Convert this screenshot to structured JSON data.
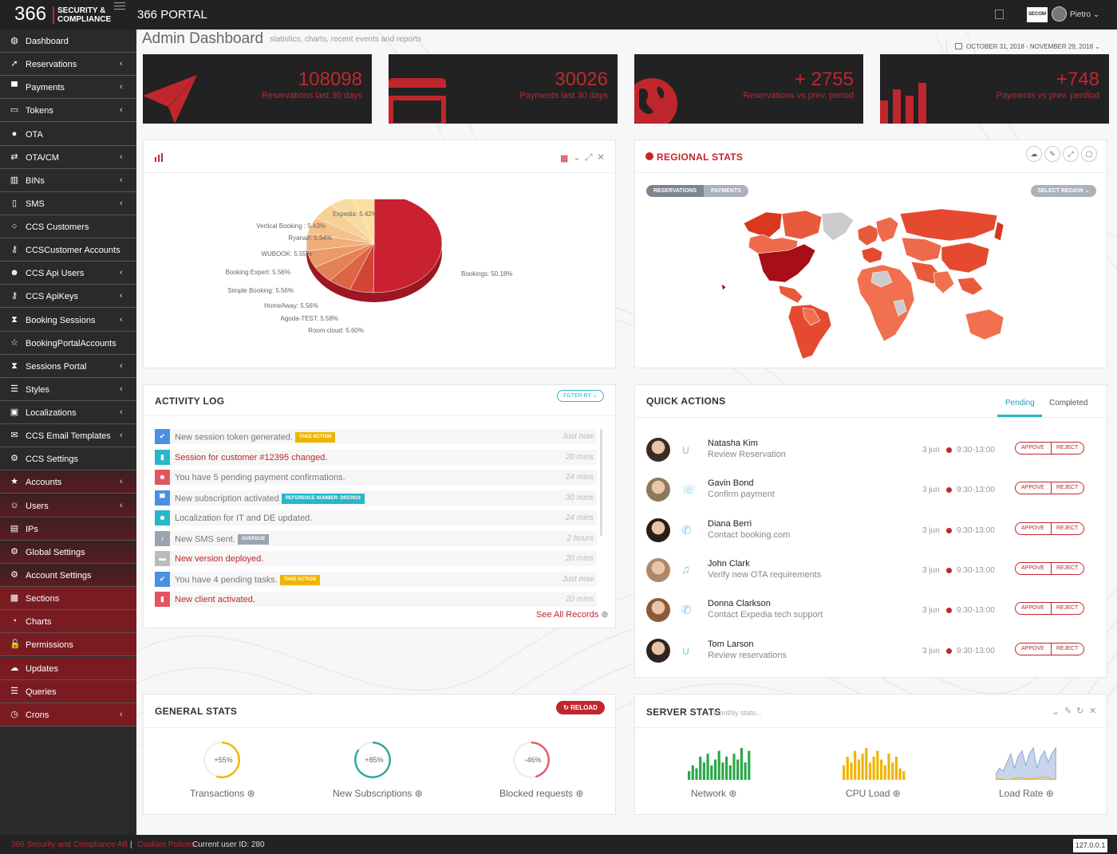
{
  "brand": {
    "number": "366",
    "line1": "SECURITY &",
    "line2": "COMPLIANCE",
    "portal_title": "366 PORTAL",
    "badge": "SECOM"
  },
  "user": {
    "name": "Pietro"
  },
  "sidebar": {
    "items": [
      {
        "label": "Dashboard",
        "icon": "dashboard-icon",
        "glyph": "◍",
        "has_chevron": false
      },
      {
        "label": "Reservations",
        "icon": "paper-plane-icon",
        "glyph": "➚",
        "has_chevron": true
      },
      {
        "label": "Payments",
        "icon": "cart-icon",
        "glyph": "▀",
        "has_chevron": true
      },
      {
        "label": "Tokens",
        "icon": "credit-card-icon",
        "glyph": "▭",
        "has_chevron": true
      },
      {
        "label": "OTA",
        "icon": "globe-icon",
        "glyph": "●",
        "has_chevron": false
      },
      {
        "label": "OTA/CM",
        "icon": "exchange-icon",
        "glyph": "⇄",
        "has_chevron": true
      },
      {
        "label": "BINs",
        "icon": "bank-icon",
        "glyph": "▥",
        "has_chevron": true
      },
      {
        "label": "SMS",
        "icon": "mobile-icon",
        "glyph": "▯",
        "has_chevron": true
      },
      {
        "label": "CCS Customers",
        "icon": "circle-icon",
        "glyph": "○",
        "has_chevron": false
      },
      {
        "label": "CCSCustomer Accounts",
        "icon": "key-icon",
        "glyph": "⚷",
        "has_chevron": false
      },
      {
        "label": "CCS Api Users",
        "icon": "users-icon",
        "glyph": "☻",
        "has_chevron": true
      },
      {
        "label": "CCS ApiKeys",
        "icon": "keys-icon",
        "glyph": "⚷",
        "has_chevron": true
      },
      {
        "label": "Booking Sessions",
        "icon": "hourglass-icon",
        "glyph": "⧗",
        "has_chevron": true
      },
      {
        "label": "BookingPortalAccounts",
        "icon": "star-outline-icon",
        "glyph": "☆",
        "has_chevron": false
      },
      {
        "label": "Sessions Portal",
        "icon": "hourglass-icon",
        "glyph": "⧗",
        "has_chevron": true
      },
      {
        "label": "Styles",
        "icon": "tasks-icon",
        "glyph": "☰",
        "has_chevron": true
      },
      {
        "label": "Localizations",
        "icon": "language-icon",
        "glyph": "▣",
        "has_chevron": true
      },
      {
        "label": "CCS Email Templates",
        "icon": "envelope-icon",
        "glyph": "✉",
        "has_chevron": true
      },
      {
        "label": "CCS Settings",
        "icon": "cogs-icon",
        "glyph": "⚙",
        "has_chevron": false
      },
      {
        "label": "Accounts",
        "icon": "star-icon",
        "glyph": "★",
        "has_chevron": true
      },
      {
        "label": "Users",
        "icon": "user-icon",
        "glyph": "☺",
        "has_chevron": true
      },
      {
        "label": "IPs",
        "icon": "ethernet-icon",
        "glyph": "▤",
        "has_chevron": false
      },
      {
        "label": "Global Settings",
        "icon": "cog-icon",
        "glyph": "⚙",
        "has_chevron": false
      },
      {
        "label": "Account Settings",
        "icon": "cogs-icon",
        "glyph": "⚙",
        "has_chevron": false
      },
      {
        "label": "Sections",
        "icon": "cubes-icon",
        "glyph": "▩",
        "has_chevron": false
      },
      {
        "label": "Charts",
        "icon": "pie-chart-icon",
        "glyph": "◔",
        "has_chevron": false
      },
      {
        "label": "Permissions",
        "icon": "unlock-icon",
        "glyph": "🔓",
        "has_chevron": false
      },
      {
        "label": "Updates",
        "icon": "cloud-upload-icon",
        "glyph": "☁",
        "has_chevron": false
      },
      {
        "label": "Queries",
        "icon": "database-icon",
        "glyph": "☰",
        "has_chevron": false
      },
      {
        "label": "Crons",
        "icon": "clock-icon",
        "glyph": "◷",
        "has_chevron": true
      }
    ]
  },
  "header": {
    "title": "Admin Dashboard",
    "subtitle": "statistics, charts, recent events and reports",
    "date_range": "OCTOBER 31, 2018 - NOVEMBER 29, 2018"
  },
  "stats": [
    {
      "value": "108098",
      "label": "Reservations last 30 days",
      "icon": "paper-plane-icon"
    },
    {
      "value": "30026",
      "label": "Payments last 30 days",
      "icon": "credit-card-icon"
    },
    {
      "value": "+ 2755",
      "label": "Reservations vs prev. period",
      "icon": "globe-icon"
    },
    {
      "value": "+748",
      "label": "Payments vs prev. perdiod",
      "icon": "bar-chart-icon"
    }
  ],
  "chart_data": {
    "type": "pie",
    "title": "",
    "categories": [
      "Bookings",
      "Room cloud",
      "Agoda-TEST",
      "HomeAway",
      "Simple Booking",
      "Booking Expert",
      "WUBOOK",
      "Ryanair",
      "Vertical Booking ",
      "Expedia"
    ],
    "values": [
      50.18,
      5.6,
      5.58,
      5.56,
      5.56,
      5.56,
      5.55,
      5.54,
      5.43,
      5.42
    ],
    "labels": [
      "Bookings: 50.18%",
      "Room cloud: 5.60%",
      "Agoda-TEST: 5.58%",
      "HomeAway: 5.56%",
      "Simple Booking: 5.56%",
      "Booking Expert: 5.56%",
      "WUBOOK: 5.55%",
      "Ryanair: 5.54%",
      "Vertical Booking : 5.43%",
      "Expedia: 5.42%"
    ],
    "colors": [
      "#c9212f",
      "#d24436",
      "#dd6546",
      "#e48155",
      "#eb9b69",
      "#f0ae7a",
      "#f4c18b",
      "#f7d096",
      "#f9dba2",
      "#fbe0a0"
    ]
  },
  "regional": {
    "title": "REGIONAL STATS",
    "tab1": "RESERVATIONS",
    "tab2": "PAYMENTS",
    "select": "SELECT REGION"
  },
  "activity": {
    "title": "ACTIVITY LOG",
    "filter": "FILTER BY",
    "see_all": "See All Records",
    "rows": [
      {
        "text": "New session token generated.",
        "tag": "TAKE ACTION",
        "tag_color": "#f0b400",
        "time": "Just now",
        "color": "#4a90e2",
        "text_color": "#777",
        "glyph": "✔"
      },
      {
        "text": "Session for customer #12395 changed.",
        "tag": "",
        "tag_color": "",
        "time": "20 mins",
        "color": "#26b7c9",
        "text_color": "#c0272d",
        "glyph": "▮"
      },
      {
        "text": "You have 5 pending payment confirmations.",
        "tag": "",
        "tag_color": "",
        "time": "24 mins",
        "color": "#e35560",
        "text_color": "#777",
        "glyph": "☻"
      },
      {
        "text": "New subscription activated",
        "tag": "REFERENCE NUMBER: DR23923",
        "tag_color": "#26b7c9",
        "time": "30 mins",
        "color": "#4a90e2",
        "text_color": "#777",
        "glyph": "▀"
      },
      {
        "text": "Localization for IT and DE updated.",
        "tag": "",
        "tag_color": "",
        "time": "24 mins",
        "color": "#26b7c9",
        "text_color": "#777",
        "glyph": "☻"
      },
      {
        "text": "New SMS sent.",
        "tag": "OVERDUE",
        "tag_color": "#9aa5b1",
        "time": "2 hours",
        "color": "#9aa5b1",
        "text_color": "#777",
        "glyph": "♪"
      },
      {
        "text": "New version deployed.",
        "tag": "",
        "tag_color": "",
        "time": "20 mins",
        "color": "#bbbbbb",
        "text_color": "#c0272d",
        "glyph": "▬"
      },
      {
        "text": "You have 4 pending tasks.",
        "tag": "TAKE ACTION",
        "tag_color": "#f0b400",
        "time": "Just now",
        "color": "#4a90e2",
        "text_color": "#777",
        "glyph": "✔"
      },
      {
        "text": "New client activated.",
        "tag": "",
        "tag_color": "",
        "time": "20 mins",
        "color": "#e35560",
        "text_color": "#c0272d",
        "glyph": "▮"
      }
    ]
  },
  "quick": {
    "title": "QUICK ACTIONS",
    "tab_pending": "Pending",
    "tab_completed": "Completed",
    "approve": "APPOVE",
    "reject": "REJECT",
    "rows": [
      {
        "name": "Natasha Kim",
        "desc": "Review Reservation",
        "date": "3 jun",
        "time": "9:30-13:00",
        "icon": "magnet-icon",
        "glyph": "∪",
        "avatar": "#3b2b24"
      },
      {
        "name": "Gavin Bond",
        "desc": "Confirm payment",
        "date": "3 jun",
        "time": "9:30-13:00",
        "icon": "comments-icon",
        "glyph": "☏",
        "avatar": "#8a7a5a"
      },
      {
        "name": "Diana Berri",
        "desc": "Contact booking.com",
        "date": "3 jun",
        "time": "9:30-13:00",
        "icon": "phone-icon",
        "glyph": "✆",
        "avatar": "#2a1d18"
      },
      {
        "name": "John Clark",
        "desc": "Verify new OTA requirements",
        "date": "3 jun",
        "time": "9:30-13:00",
        "icon": "bell-icon",
        "glyph": "♫",
        "avatar": "#b08868"
      },
      {
        "name": "Donna Clarkson",
        "desc": "Contact Expedia tech support",
        "date": "3 jun",
        "time": "9:30-13:00",
        "icon": "phone-icon",
        "glyph": "✆",
        "avatar": "#8a5a3a"
      },
      {
        "name": "Tom Larson",
        "desc": "Review reservations",
        "date": "3 jun",
        "time": "9:30-13:00",
        "icon": "magnet-icon",
        "glyph": "∪",
        "avatar": "#2f2320"
      }
    ]
  },
  "general": {
    "title": "GENERAL STATS",
    "reload": "RELOAD",
    "items": [
      {
        "pct": "+55%",
        "label": "Transactions",
        "ring_color": "#f0b400",
        "fill": 0.55
      },
      {
        "pct": "+85%",
        "label": "New Subscriptions",
        "ring_color": "#26a69a",
        "fill": 0.85
      },
      {
        "pct": "-46%",
        "label": "Blocked requests",
        "ring_color": "#e35560",
        "fill": 0.46
      }
    ]
  },
  "server": {
    "title": "SERVER STATS",
    "subtitle": "monthly stats...",
    "items": [
      {
        "label": "Network",
        "color": "#2aa847",
        "kind": "bar",
        "values": [
          3,
          5,
          4,
          8,
          6,
          9,
          5,
          7,
          10,
          6,
          8,
          5,
          9,
          7,
          11,
          6,
          10
        ]
      },
      {
        "label": "CPU Load",
        "color": "#f0b400",
        "kind": "bar",
        "values": [
          5,
          8,
          6,
          10,
          7,
          9,
          11,
          6,
          8,
          10,
          7,
          5,
          9,
          6,
          8,
          4,
          3
        ]
      },
      {
        "label": "Load Rate",
        "color": "#8aa6d4",
        "kind": "area",
        "values": [
          2,
          4,
          3,
          6,
          9,
          4,
          8,
          10,
          5,
          9,
          11,
          4,
          8,
          10,
          6,
          9,
          11
        ]
      }
    ]
  },
  "footer": {
    "company": "366 Security and Compliance AB",
    "sep": "|",
    "cookies": "Cookies Policies",
    "current_user": "Current user ID: 280",
    "ip": "127.0.0.1"
  }
}
